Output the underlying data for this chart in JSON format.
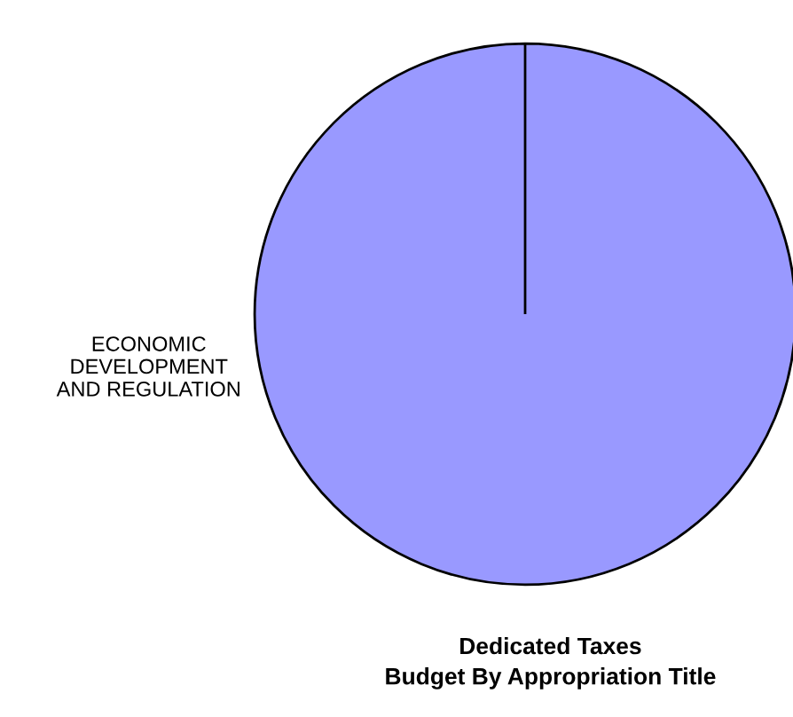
{
  "chart_data": {
    "type": "pie",
    "title": "Dedicated Taxes\nBudget By Appropriation Title",
    "categories": [
      "ECONOMIC\nDEVELOPMENT\nAND REGULATION"
    ],
    "values": [
      100
    ],
    "colors": [
      "#9999ff"
    ],
    "legend": false
  }
}
